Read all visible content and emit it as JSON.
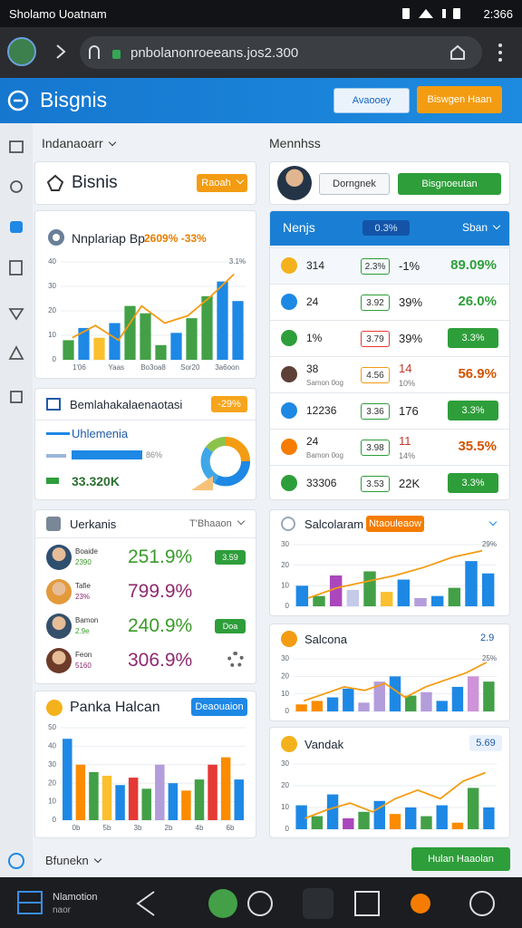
{
  "status_bar": {
    "app_name": "Sholamo Uoatnam",
    "time": "2:366"
  },
  "browser": {
    "url": "pnbolanonroeeans.jos2.300"
  },
  "header": {
    "title": "Bisgnis",
    "secondary_button": "Avaooey",
    "primary_button": "Biswgen Haan"
  },
  "left_column": {
    "dropdown": "Indanaoarr",
    "business_card": {
      "title": "Bisnis",
      "button": "Raoah"
    },
    "overview": {
      "title": "Nnplariap Bp",
      "change": "2609% -33%",
      "chart": {
        "type": "bar",
        "ylim": [
          0,
          40
        ],
        "yticks": [
          0,
          10,
          20,
          30,
          40
        ],
        "x_labels": [
          "1'06",
          "Yaas",
          "Bo3oa8",
          "Sor20",
          "3a6oon"
        ],
        "values": [
          8,
          13,
          9,
          15,
          22,
          19,
          6,
          11,
          17,
          26,
          32,
          24
        ],
        "colors": [
          "#43a047",
          "#1e88e5",
          "#fbc02d",
          "#1e88e5",
          "#43a047",
          "#43a047",
          "#43a047",
          "#1e88e5",
          "#43a047",
          "#43a047",
          "#1e88e5",
          "#1e88e5"
        ],
        "line": {
          "color": "#f39c12",
          "values": [
            9,
            14,
            8,
            22,
            15,
            18,
            26,
            35
          ]
        },
        "annotation": "3.1%"
      }
    },
    "summary": {
      "title": "Bemlahakalaenaotasi",
      "badge": "-29%",
      "progress_label": "Uhlemenia",
      "progress_value": "86%",
      "total": "33.320K"
    },
    "team": {
      "title": "Uerkanis",
      "filter": "T'Bhaaon",
      "members": [
        {
          "name": "Boaide",
          "sub": "2390",
          "value": "251.9%",
          "badge": "3.59"
        },
        {
          "name": "Tafie",
          "sub": "23%",
          "value": "799.9%"
        },
        {
          "name": "Bamon",
          "sub": "2.9e",
          "value": "240.9%",
          "badge": "Doa"
        },
        {
          "name": "Feon",
          "sub": "5160",
          "value": "306.9%"
        }
      ]
    },
    "panka": {
      "title": "Panka Halcan",
      "button": "Deaouaion",
      "chart": {
        "type": "bar",
        "ylim": [
          0,
          50
        ],
        "yticks": [
          0,
          10,
          20,
          30,
          40,
          50
        ],
        "x_labels": [
          "0b",
          "5b",
          "3b",
          "2b",
          "4b",
          "6b"
        ],
        "values": [
          44,
          30,
          26,
          24,
          19,
          23,
          17,
          30,
          20,
          16,
          22,
          30,
          34,
          22
        ],
        "colors": [
          "#1e88e5",
          "#fb8c00",
          "#43a047",
          "#fbc02d",
          "#1e88e5",
          "#e53935",
          "#43a047",
          "#b39ddb",
          "#1e88e5",
          "#fb8c00",
          "#43a047",
          "#e53935",
          "#fb8c00",
          "#1e88e5"
        ]
      }
    }
  },
  "right_column": {
    "label": "Mennhss",
    "profile": {
      "button": "Dorngnek",
      "action": "Bisgnoeutan"
    },
    "table": {
      "title": "Nenjs",
      "badge": "0.3%",
      "sort": "Sban",
      "rows": [
        {
          "label": "314",
          "badge": "2.3%",
          "mid": "-1%",
          "value": "89.09%"
        },
        {
          "label": "24",
          "badge": "3.92",
          "mid": "39%",
          "value": "26.0%"
        },
        {
          "label": "1%",
          "badge": "3.79",
          "mid": "39%",
          "value": "3.3%"
        },
        {
          "label": "38",
          "sub": "Samon 0og",
          "badge": "4.56",
          "mid": "14",
          "mid_sub": "10%",
          "value": "56.9%"
        },
        {
          "label": "12236",
          "badge": "3.36",
          "mid": "176",
          "value": "3.3%"
        },
        {
          "label": "24",
          "sub": "Bamon 0og",
          "badge": "3.98",
          "mid": "11",
          "mid_sub": "14%",
          "value": "35.5%"
        },
        {
          "label": "33306",
          "badge": "3.53",
          "mid": "22K",
          "value": "3.3%"
        }
      ]
    },
    "cards": [
      {
        "title": "Salcolaram",
        "button": "Ntaouleaow",
        "chart": {
          "type": "bar",
          "ylim": [
            0,
            30
          ],
          "yticks": [
            0,
            10,
            20,
            30
          ],
          "values": [
            10,
            5,
            15,
            8,
            17,
            7,
            13,
            4,
            5,
            9,
            22,
            16
          ],
          "colors": [
            "#1e88e5",
            "#43a047",
            "#ab47bc",
            "#c5cae9",
            "#43a047",
            "#fbc02d",
            "#1e88e5",
            "#b39ddb",
            "#1e88e5",
            "#43a047",
            "#1e88e5",
            "#1e88e5"
          ],
          "line": {
            "color": "#f39c12",
            "values": [
              4,
              9,
              12,
              15,
              19,
              24,
              27
            ]
          },
          "annotation": "29%"
        }
      },
      {
        "title": "Salcona",
        "badge": "2.9",
        "chart": {
          "type": "bar",
          "ylim": [
            0,
            30
          ],
          "yticks": [
            0,
            10,
            20,
            30
          ],
          "values": [
            4,
            6,
            8,
            13,
            5,
            17,
            20,
            9,
            11,
            6,
            14,
            20,
            17
          ],
          "colors": [
            "#fb8c00",
            "#fb8c00",
            "#1e88e5",
            "#1e88e5",
            "#b39ddb",
            "#b39ddb",
            "#1e88e5",
            "#43a047",
            "#b39ddb",
            "#1e88e5",
            "#1e88e5",
            "#ce93d8",
            "#43a047"
          ],
          "line": {
            "color": "#f39c12",
            "values": [
              6,
              10,
              14,
              12,
              16,
              8,
              14,
              18,
              22,
              28
            ]
          },
          "annotation": "25%"
        }
      },
      {
        "title": "Vandak",
        "badge": "5.69",
        "chart": {
          "type": "bar",
          "ylim": [
            0,
            30
          ],
          "yticks": [
            0,
            10,
            20,
            30
          ],
          "values": [
            11,
            6,
            16,
            5,
            8,
            13,
            7,
            10,
            6,
            11,
            3,
            19,
            10
          ],
          "colors": [
            "#1e88e5",
            "#43a047",
            "#1e88e5",
            "#ab47bc",
            "#43a047",
            "#1e88e5",
            "#fb8c00",
            "#1e88e5",
            "#43a047",
            "#1e88e5",
            "#fb8c00",
            "#43a047",
            "#1e88e5"
          ],
          "line": {
            "color": "#f39c12",
            "values": [
              5,
              9,
              12,
              8,
              14,
              18,
              14,
              22,
              26
            ]
          }
        }
      }
    ]
  },
  "footer": {
    "dropdown": "Bfunekn",
    "button": "Hulan Haaolan"
  },
  "nav": {
    "label": "Nlamotion",
    "sublabel": "naor"
  }
}
